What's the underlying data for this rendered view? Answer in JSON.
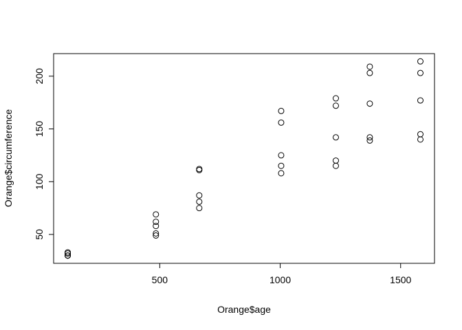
{
  "chart_data": {
    "type": "scatter",
    "x_label": "Orange$age",
    "y_label": "Orange$circumference",
    "x": [
      118,
      484,
      664,
      1004,
      1231,
      1372,
      1582,
      118,
      484,
      664,
      1004,
      1231,
      1372,
      1582,
      118,
      484,
      664,
      1004,
      1231,
      1372,
      1582,
      118,
      484,
      664,
      1004,
      1231,
      1372,
      1582,
      118,
      484,
      664,
      1004,
      1231,
      1372,
      1582
    ],
    "y": [
      30,
      58,
      87,
      115,
      120,
      142,
      145,
      33,
      69,
      111,
      156,
      172,
      203,
      203,
      30,
      51,
      75,
      108,
      115,
      139,
      140,
      32,
      62,
      112,
      167,
      179,
      209,
      214,
      30,
      49,
      81,
      125,
      142,
      174,
      177
    ],
    "color": "#000000",
    "xlim": [
      59.44,
      1640.56
    ],
    "ylim": [
      22.64,
      221.36
    ],
    "xticks": [
      500,
      1000,
      1500
    ],
    "yticks": [
      50,
      100,
      150,
      200
    ]
  }
}
